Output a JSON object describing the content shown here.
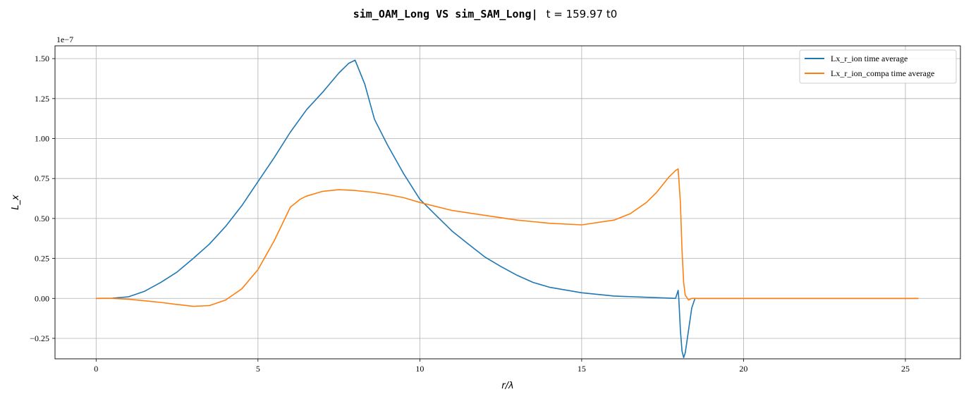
{
  "title": {
    "sim_part": "sim_OAM_Long VS sim_SAM_Long|",
    "time_part": "t = 159.97 t0"
  },
  "chart_data": {
    "type": "line",
    "title": "sim_OAM_Long VS sim_SAM_Long| t = 159.97 t0",
    "xlabel": "r/λ",
    "ylabel": "L_x",
    "y_offset_text": "1e−7",
    "y_scale": 1e-07,
    "xlim": [
      -1.27,
      26.7
    ],
    "ylim": [
      -0.378,
      1.58
    ],
    "x_ticks": [
      0,
      5,
      10,
      15,
      20,
      25
    ],
    "x_tick_labels": [
      "0",
      "5",
      "10",
      "15",
      "20",
      "25"
    ],
    "y_ticks": [
      -0.25,
      0,
      0.25,
      0.5,
      0.75,
      1.0,
      1.25,
      1.5
    ],
    "y_tick_labels": [
      "−0.25",
      "0.00",
      "0.25",
      "0.50",
      "0.75",
      "1.00",
      "1.25",
      "1.50"
    ],
    "grid": true,
    "legend_position": "top-right",
    "series": [
      {
        "name": "Lx_r_ion time average",
        "color": "#1f77b4",
        "x": [
          0,
          0.5,
          1,
          1.5,
          2,
          2.5,
          3,
          3.5,
          4,
          4.5,
          5,
          5.5,
          6,
          6.5,
          7,
          7.5,
          7.8,
          8.0,
          8.3,
          8.6,
          9,
          9.5,
          10,
          10.5,
          11,
          11.5,
          12,
          12.5,
          13,
          13.5,
          14,
          15,
          16,
          17,
          17.5,
          17.9,
          17.98,
          18.0,
          18.05,
          18.1,
          18.15,
          18.2,
          18.3,
          18.4,
          18.5,
          19,
          20,
          22,
          24,
          25.4
        ],
        "values": [
          0.0,
          0.001,
          0.01,
          0.045,
          0.1,
          0.165,
          0.25,
          0.34,
          0.45,
          0.58,
          0.73,
          0.88,
          1.04,
          1.18,
          1.29,
          1.41,
          1.47,
          1.49,
          1.34,
          1.12,
          0.96,
          0.78,
          0.62,
          0.52,
          0.42,
          0.34,
          0.26,
          0.2,
          0.145,
          0.1,
          0.07,
          0.035,
          0.015,
          0.007,
          0.003,
          0.0,
          0.05,
          0.0,
          -0.2,
          -0.33,
          -0.37,
          -0.34,
          -0.2,
          -0.06,
          0.0,
          0.0,
          0.0,
          0.0,
          0.0,
          0.0
        ]
      },
      {
        "name": "Lx_r_ion_compa time average",
        "color": "#ff7f0e",
        "x": [
          0,
          0.5,
          1,
          1.5,
          2,
          2.5,
          3,
          3.5,
          4,
          4.5,
          5,
          5.5,
          6,
          6.3,
          6.5,
          7,
          7.5,
          8,
          8.5,
          9,
          9.5,
          10,
          11,
          12,
          13,
          14,
          15,
          16,
          16.5,
          17,
          17.3,
          17.5,
          17.7,
          17.9,
          17.98,
          18.05,
          18.1,
          18.15,
          18.2,
          18.3,
          18.4,
          19,
          20,
          22,
          24,
          25.4
        ],
        "values": [
          0.0,
          0.0,
          -0.005,
          -0.015,
          -0.025,
          -0.038,
          -0.05,
          -0.045,
          -0.01,
          0.06,
          0.18,
          0.36,
          0.57,
          0.62,
          0.64,
          0.67,
          0.68,
          0.675,
          0.665,
          0.65,
          0.63,
          0.6,
          0.55,
          0.52,
          0.49,
          0.47,
          0.46,
          0.49,
          0.53,
          0.6,
          0.66,
          0.71,
          0.76,
          0.8,
          0.81,
          0.6,
          0.3,
          0.1,
          0.02,
          -0.01,
          0.0,
          0.0,
          0.0,
          0.0,
          0.0,
          0.0
        ]
      }
    ]
  }
}
